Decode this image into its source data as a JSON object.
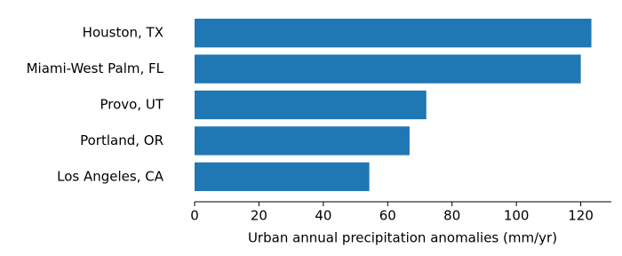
{
  "chart_data": {
    "type": "barh",
    "categories": [
      "Houston, TX",
      "Miami-West Palm, FL",
      "Provo, UT",
      "Portland, OR",
      "Los Angeles, CA"
    ],
    "values": [
      123.3,
      120,
      72,
      66.8,
      54.3
    ],
    "color": "#1f77b4",
    "xlabel": "Urban annual precipitation anomalies (mm/yr)",
    "xlim": [
      0,
      129.5
    ],
    "xticks": [
      0,
      20,
      40,
      60,
      80,
      100,
      120
    ],
    "grid": false
  }
}
